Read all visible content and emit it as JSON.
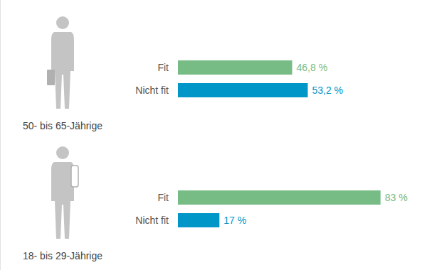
{
  "chart_data": [
    {
      "type": "bar",
      "orientation": "horizontal",
      "title": "50- bis 65-Jährige",
      "categories": [
        "Fit",
        "Nicht fit"
      ],
      "values": [
        46.8,
        53.2
      ],
      "value_labels": [
        "46,8 %",
        "53,2 %"
      ],
      "colors": [
        "#77bb85",
        "#0096c8"
      ],
      "xlim": [
        0,
        100
      ],
      "data_labels": true,
      "tick_labels": "y"
    },
    {
      "type": "bar",
      "orientation": "horizontal",
      "title": "18- bis 29-Jährige",
      "categories": [
        "Fit",
        "Nicht fit"
      ],
      "values": [
        83,
        17
      ],
      "value_labels": [
        "83 %",
        "17 %"
      ],
      "colors": [
        "#77bb85",
        "#0096c8"
      ],
      "xlim": [
        0,
        100
      ],
      "data_labels": true,
      "tick_labels": "y"
    }
  ]
}
